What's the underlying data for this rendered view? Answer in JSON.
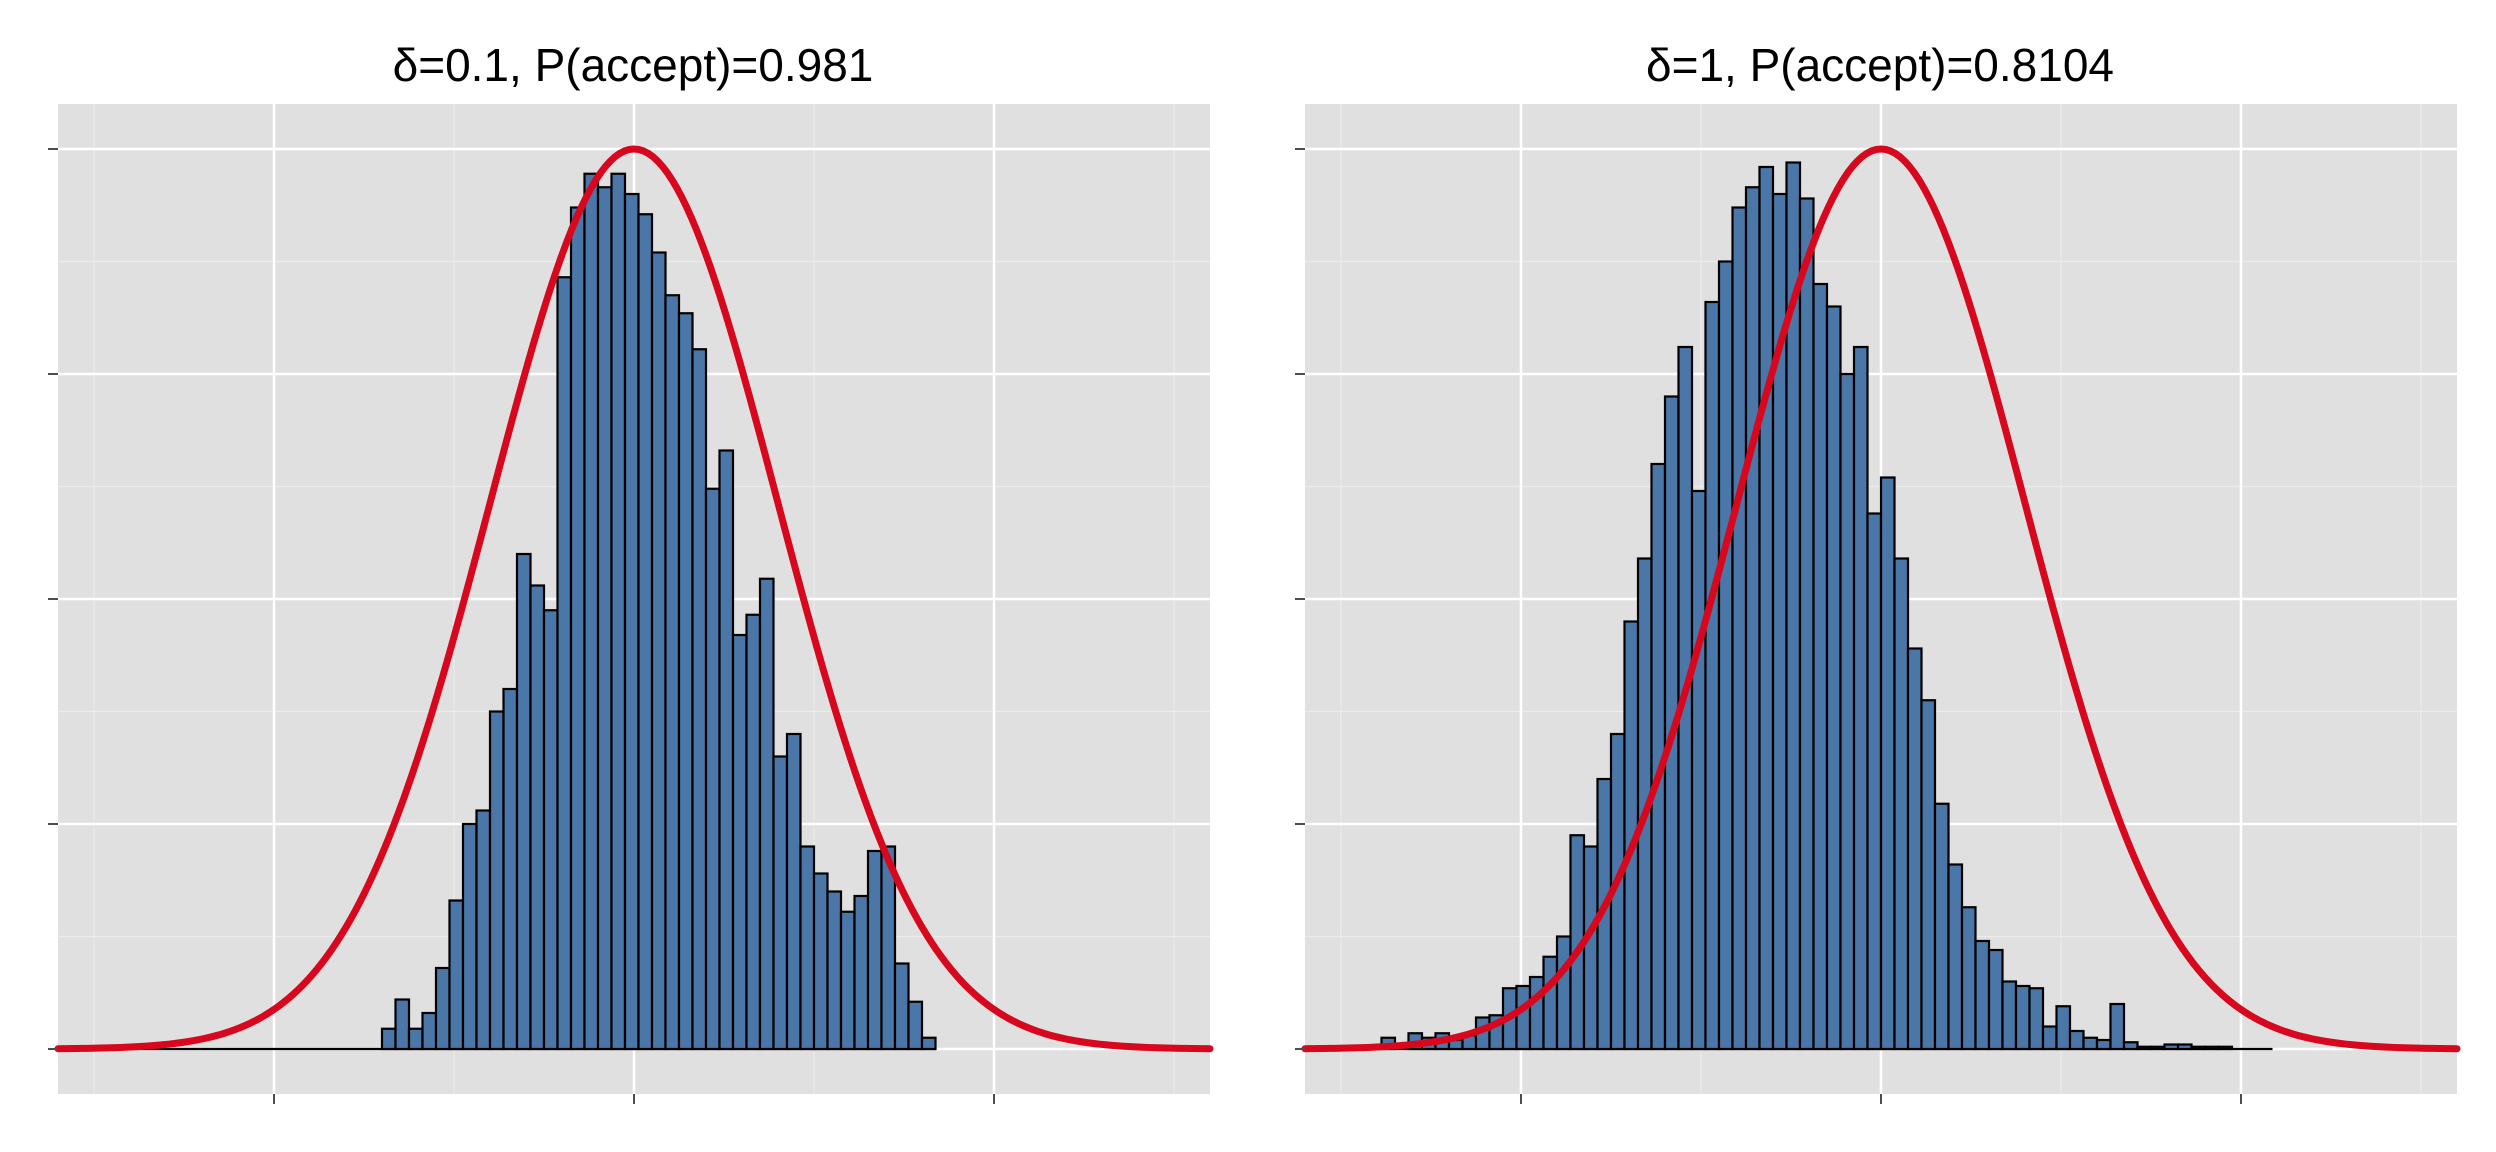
{
  "colors": {
    "bar_fill": "#4a76a8",
    "bar_edge": "#000000",
    "curve": "#d7081e",
    "panel_background": "#e0e0e0",
    "grid": "#ffffff"
  },
  "chart_data": [
    {
      "type": "bar",
      "title": "δ=0.1, P(accept)=0.981",
      "xlabel": "",
      "ylabel": "",
      "grid": true,
      "legend": "none",
      "xlim": [
        -3.2,
        3.2
      ],
      "ylim": [
        -0.02,
        0.42
      ],
      "x_major_ticks": [
        -2,
        0,
        2
      ],
      "y_major_ticks": [
        0,
        0.1,
        0.2,
        0.3,
        0.4
      ],
      "bin_width": 0.075,
      "bin_start": -2.9,
      "values": [
        0,
        0,
        0,
        0,
        0,
        0,
        0,
        0,
        0,
        0,
        0,
        0,
        0,
        0,
        0,
        0,
        0,
        0,
        0,
        0,
        0.009,
        0.022,
        0.009,
        0.016,
        0.036,
        0.066,
        0.1,
        0.106,
        0.15,
        0.16,
        0.22,
        0.206,
        0.195,
        0.343,
        0.374,
        0.389,
        0.383,
        0.389,
        0.38,
        0.371,
        0.354,
        0.335,
        0.327,
        0.311,
        0.249,
        0.266,
        0.184,
        0.193,
        0.209,
        0.13,
        0.14,
        0.09,
        0.078,
        0.07,
        0.061,
        0.068,
        0.088,
        0.09,
        0.038,
        0.021,
        0.005
      ],
      "curve": {
        "label": "",
        "mean": 0,
        "sd": 0.8,
        "peak": 0.4,
        "x_range": [
          -3.2,
          3.2
        ]
      }
    },
    {
      "type": "bar",
      "title": "δ=1, P(accept)=0.8104",
      "xlabel": "",
      "ylabel": "",
      "grid": true,
      "legend": "none",
      "xlim": [
        -3.2,
        3.2
      ],
      "ylim": [
        -0.02,
        0.42
      ],
      "x_major_ticks": [
        -2,
        0,
        2
      ],
      "y_major_ticks": [
        0,
        0.1,
        0.2,
        0.3,
        0.4
      ],
      "bin_width": 0.075,
      "bin_start": -3.0,
      "values": [
        0,
        0,
        0,
        0.005,
        0,
        0.007,
        0.005,
        0.007,
        0.004,
        0.006,
        0.014,
        0.015,
        0.027,
        0.028,
        0.032,
        0.041,
        0.05,
        0.095,
        0.09,
        0.12,
        0.14,
        0.19,
        0.218,
        0.26,
        0.29,
        0.312,
        0.248,
        0.332,
        0.35,
        0.374,
        0.383,
        0.392,
        0.38,
        0.394,
        0.378,
        0.34,
        0.33,
        0.3,
        0.312,
        0.238,
        0.254,
        0.218,
        0.178,
        0.155,
        0.109,
        0.082,
        0.063,
        0.048,
        0.044,
        0.03,
        0.028,
        0.027,
        0.01,
        0.019,
        0.008,
        0.005,
        0.004,
        0.02,
        0.003,
        0.001,
        0.001,
        0.002,
        0.002,
        0.001,
        0.001,
        0.001,
        0,
        0,
        0
      ],
      "curve": {
        "label": "",
        "mean": 0,
        "sd": 0.8,
        "peak": 0.4,
        "x_range": [
          -3.2,
          3.2
        ]
      }
    }
  ]
}
